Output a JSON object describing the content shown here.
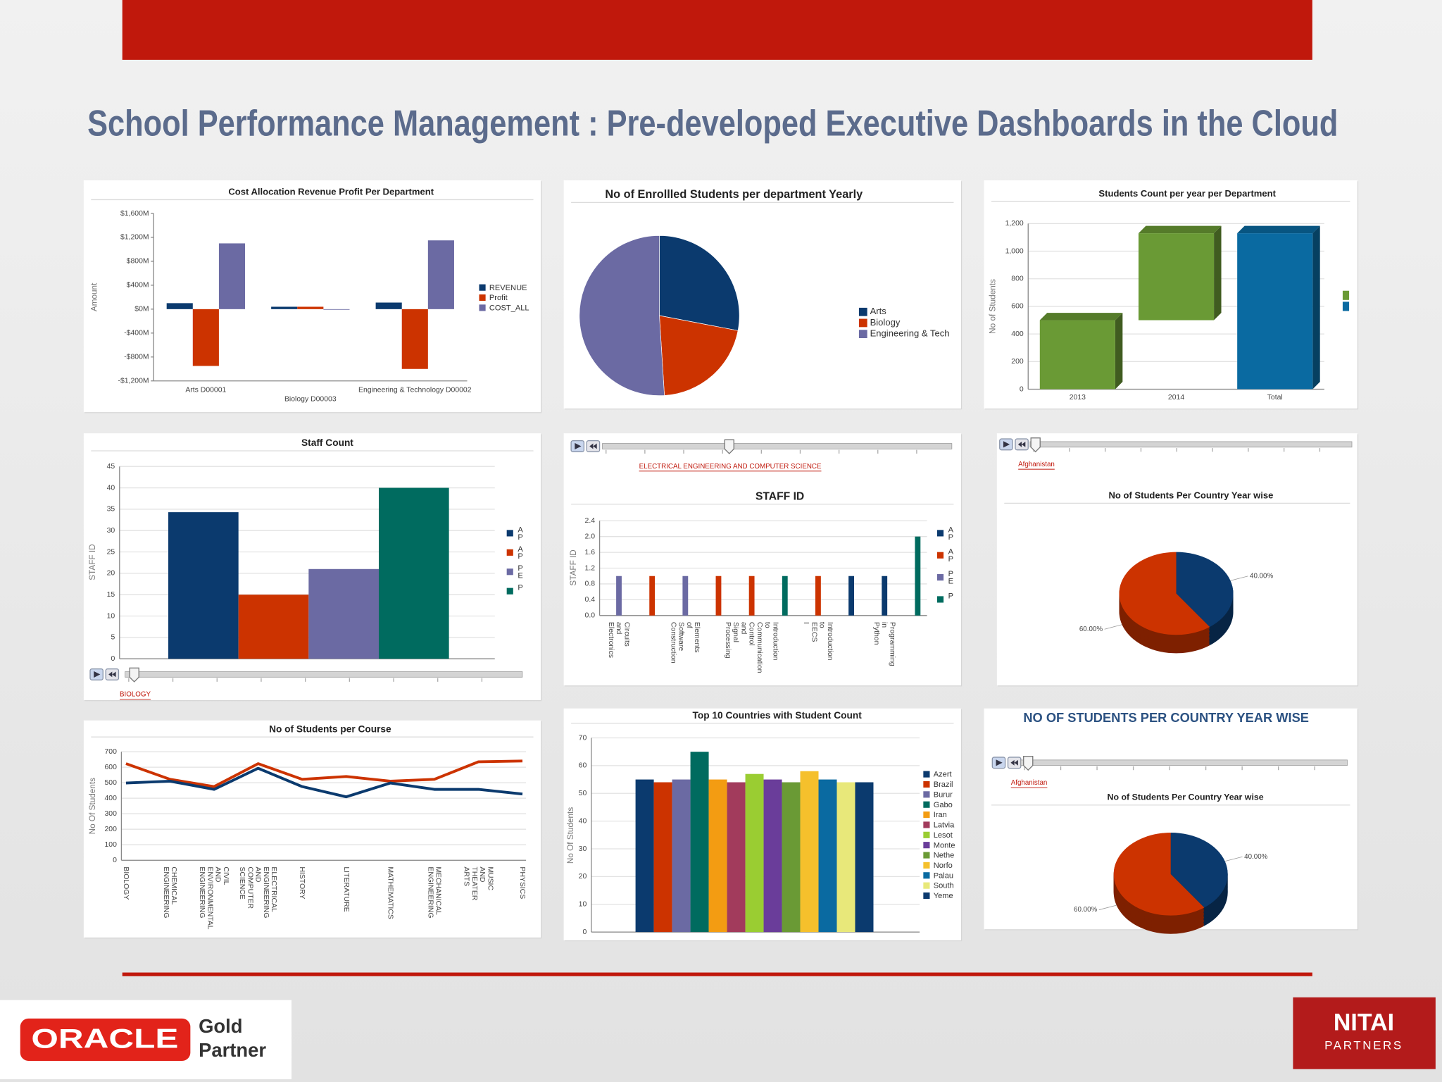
{
  "page": {
    "title": "School Performance Management : Pre-developed Executive Dashboards in the Cloud",
    "oracle": "ORACLE",
    "partner_tier": "Gold",
    "partner": "Partner",
    "nitai": "NITAI",
    "nitai_sub": "PARTNERS"
  },
  "chart_data": [
    {
      "type": "bar",
      "title": "Cost Allocation Revenue Profit Per Department",
      "y_label": "Amount",
      "categories": [
        "Arts D00001",
        "Biology D00003",
        "Engineering & Technology D00002"
      ],
      "series": [
        {
          "name": "REVENUE",
          "color": "#0b3a6e",
          "values": [
            100,
            40,
            110
          ]
        },
        {
          "name": "Profit",
          "color": "#cc3300",
          "values": [
            -950,
            40,
            -1000
          ]
        },
        {
          "name": "COST_ALL",
          "color": "#6b6aa3",
          "values": [
            1100,
            -10,
            1150
          ]
        }
      ],
      "ylim": [
        -1200,
        1600
      ],
      "yticks": [
        {
          "value": -1200,
          "label": "-$1,200M"
        },
        {
          "value": -800,
          "label": "-$800M"
        },
        {
          "value": -400,
          "label": "-$400M"
        },
        {
          "value": 0,
          "label": "$0M"
        },
        {
          "value": 400,
          "label": "$400M"
        },
        {
          "value": 800,
          "label": "$800M"
        },
        {
          "value": 1200,
          "label": "$1,200M"
        },
        {
          "value": 1600,
          "label": "$1,600M"
        }
      ],
      "grid": false
    },
    {
      "type": "pie",
      "title": "No of Enrollled Students per department Yearly",
      "categories": [
        "Arts",
        "Biology",
        "Engineering & Tech"
      ],
      "values": [
        28,
        21,
        51
      ],
      "colors": [
        "#0b3a6e",
        "#cc3300",
        "#6b6aa3"
      ]
    },
    {
      "type": "waterfall",
      "title": "Students Count per year per Department",
      "y_label": "No of Students",
      "categories": [
        "2013",
        "2014",
        "Total"
      ],
      "values": [
        500,
        630,
        1130
      ],
      "totals": [
        false,
        false,
        true
      ],
      "colors": [
        "#6a9a35",
        "#6a9a35",
        "#0a6aa1"
      ],
      "ylim": [
        0,
        1200
      ],
      "yticks": [
        0,
        200,
        400,
        600,
        800,
        {
          "value": 1000,
          "label": "1,000"
        },
        {
          "value": 1200,
          "label": "1,200"
        }
      ],
      "grid": true
    },
    {
      "type": "bar",
      "title": "Staff Count",
      "y_label": "STAFF ID",
      "slider_label": "BIOLOGY",
      "series": [
        {
          "name": "AP",
          "color": "#0b3a6e",
          "values": [
            34.3
          ]
        },
        {
          "name": "AP",
          "color": "#cc3300",
          "values": [
            15
          ]
        },
        {
          "name": "PE",
          "color": "#6b6aa3",
          "values": [
            21
          ]
        },
        {
          "name": "P",
          "color": "#006b5f",
          "values": [
            40
          ]
        }
      ],
      "ylim": [
        0,
        45
      ],
      "yticks": [
        0,
        5,
        10,
        15,
        20,
        25,
        30,
        35,
        40,
        45
      ],
      "grid": true
    },
    {
      "type": "bar",
      "title": "STAFF ID",
      "y_label": "STAFF ID",
      "slider_label": "ELECTRICAL ENGINEERING AND COMPUTER SCIENCE",
      "categories": [
        "Circuits and Electronics",
        null,
        "Elements of Software Construction",
        null,
        "Introduction to Communication Control and Signal Processing",
        null,
        "Introduction to EECS I",
        null,
        "Programming in Python",
        null
      ],
      "values": [
        1,
        1,
        1,
        1,
        1,
        1,
        1,
        1,
        1,
        2
      ],
      "colors": [
        "#6b6aa3",
        "#cc3300",
        "#6b6aa3",
        "#cc3300",
        "#cc3300",
        "#006b5f",
        "#cc3300",
        "#0b3a6e",
        "#0b3a6e",
        "#006b5f"
      ],
      "legend": [
        {
          "name": "AP",
          "color": "#0b3a6e"
        },
        {
          "name": "AP",
          "color": "#cc3300"
        },
        {
          "name": "PE",
          "color": "#6b6aa3"
        },
        {
          "name": "P",
          "color": "#006b5f"
        }
      ],
      "ylim": [
        0,
        2.4
      ],
      "yticks": [
        {
          "value": 0,
          "label": "0.0"
        },
        0.4,
        0.8,
        1.2,
        1.6,
        {
          "value": 2,
          "label": "2.0"
        },
        2.4
      ],
      "grid": true
    },
    {
      "type": "pie",
      "title": "No of Students Per Country Year wise",
      "slider_label": "Afghanistan",
      "three_d": true,
      "values": [
        40,
        60
      ],
      "value_labels": [
        "40.00%",
        "60.00%"
      ],
      "colors": [
        "#0b3a6e",
        "#cc3300"
      ]
    },
    {
      "type": "line",
      "title": "No of Students per Course",
      "y_label": "No Of Students",
      "categories": [
        "BIOLOGY",
        "CHEMICAL ENGINEERING",
        "CIVIL AND ENVIRONMENTAL ENGINEERING",
        "ELECTRICAL ENGINEERING AND COMPUTER SCIENCE",
        "HISTORY",
        "LITERATURE",
        "MATHEMATICS",
        "MECHANICAL ENGINEERING",
        "MUSIC AND THEATER ARTS",
        "PHYSICS"
      ],
      "series": [
        {
          "color": "#cc3300",
          "values": [
            623,
            522,
            475,
            623,
            522,
            540,
            510,
            522,
            635,
            640
          ]
        },
        {
          "color": "#0b3a6e",
          "values": [
            498,
            510,
            457,
            593,
            475,
            409,
            498,
            457,
            457,
            427
          ]
        }
      ],
      "ylim": [
        0,
        700
      ],
      "yticks": [
        0,
        100,
        200,
        300,
        400,
        500,
        600,
        700
      ],
      "grid": true
    },
    {
      "type": "bar",
      "title": "Top 10 Countries with Student Count",
      "y_label": "No Of Students",
      "categories_in_legend": true,
      "categories": [
        "Azert",
        "Brazil",
        "Burur",
        "Gabo",
        "Iran",
        "Latvia",
        "Lesot",
        "Monte",
        "Nethe",
        "Norfo",
        "Palau",
        "South",
        "Yeme"
      ],
      "values": [
        55,
        54,
        55,
        65,
        55,
        54,
        57,
        55,
        54,
        58,
        55,
        54,
        54
      ],
      "colors": [
        "#0b3a6e",
        "#cc3300",
        "#6b6aa3",
        "#006b5f",
        "#f39c12",
        "#a23b5c",
        "#9acd32",
        "#6a3d9a",
        "#6a9a35",
        "#f5c02c",
        "#0a6aa1",
        "#e8e87a",
        "#0b3a6e"
      ],
      "ylim": [
        0,
        70
      ],
      "yticks": [
        0,
        10,
        20,
        30,
        40,
        50,
        60,
        70
      ],
      "grid": true
    },
    {
      "type": "pie",
      "header": "NO OF STUDENTS PER COUNTRY YEAR WISE",
      "title": "No of Students Per Country Year wise",
      "slider_label": "Afghanistan",
      "three_d": true,
      "values": [
        40,
        60
      ],
      "value_labels": [
        "40.00%",
        "60.00%"
      ],
      "colors": [
        "#0b3a6e",
        "#cc3300"
      ]
    }
  ]
}
